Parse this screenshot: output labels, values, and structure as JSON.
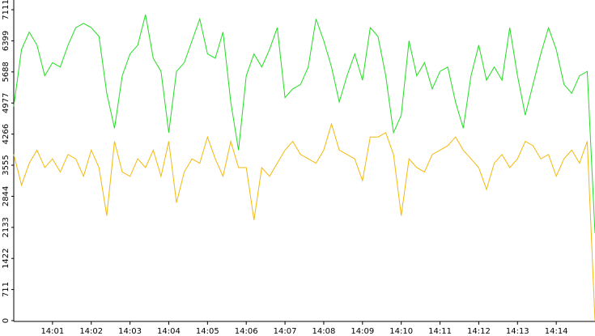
{
  "chart_data": {
    "type": "line",
    "x": [
      0,
      0.2,
      0.4,
      0.6,
      0.8,
      1,
      1.2,
      1.4,
      1.6,
      1.8,
      2,
      2.2,
      2.4,
      2.6,
      2.8,
      3,
      3.2,
      3.4,
      3.6,
      3.8,
      4,
      4.2,
      4.4,
      4.6,
      4.8,
      5,
      5.2,
      5.4,
      5.6,
      5.8,
      6,
      6.2,
      6.4,
      6.6,
      6.8,
      7,
      7.2,
      7.4,
      7.6,
      7.8,
      8,
      8.2,
      8.4,
      8.6,
      8.8,
      9,
      9.2,
      9.4,
      9.6,
      9.8,
      10,
      10.2,
      10.4,
      10.6,
      10.8,
      11,
      11.2,
      11.4,
      11.6,
      11.8,
      12,
      12.2,
      12.4,
      12.6,
      12.8,
      13,
      13.2,
      13.4,
      13.6,
      13.8,
      14,
      14.2,
      14.4,
      14.6,
      14.8,
      15
    ],
    "series": [
      {
        "color": "#22dd22",
        "values": [
          4900,
          6200,
          6600,
          6300,
          5600,
          5900,
          5800,
          6300,
          6700,
          6800,
          6700,
          6500,
          5200,
          4400,
          5600,
          6100,
          6300,
          7000,
          6000,
          5700,
          4300,
          5700,
          5900,
          6400,
          6900,
          6100,
          6000,
          6600,
          5000,
          3900,
          5600,
          6100,
          5800,
          6200,
          6700,
          5100,
          5300,
          5400,
          5800,
          6900,
          6400,
          5800,
          5000,
          5600,
          6100,
          5500,
          6700,
          6500,
          5600,
          4300,
          4700,
          6400,
          5600,
          5900,
          5300,
          5700,
          5800,
          5000,
          4400,
          5600,
          6300,
          5500,
          5800,
          5500,
          6700,
          5600,
          4700,
          5400,
          6100,
          6700,
          6200,
          5400,
          5200,
          5600,
          5700,
          2000
        ]
      },
      {
        "color": "#f2b90c",
        "values": [
          3800,
          3100,
          3600,
          3900,
          3500,
          3700,
          3400,
          3800,
          3700,
          3300,
          3900,
          3500,
          2400,
          4100,
          3400,
          3300,
          3700,
          3500,
          3900,
          3300,
          4100,
          2700,
          3400,
          3700,
          3600,
          4200,
          3700,
          3300,
          4100,
          3500,
          3500,
          2300,
          3500,
          3300,
          3600,
          3900,
          4100,
          3800,
          3700,
          3600,
          3900,
          4500,
          3900,
          3800,
          3700,
          3200,
          4200,
          4200,
          4300,
          3800,
          2400,
          3700,
          3500,
          3400,
          3800,
          3900,
          4000,
          4200,
          3900,
          3700,
          3500,
          3000,
          3600,
          3800,
          3500,
          3700,
          4100,
          4000,
          3700,
          3800,
          3300,
          3700,
          3900,
          3600,
          4100,
          0
        ]
      }
    ],
    "xlim": [
      0,
      15
    ],
    "xticks": [
      {
        "value": 1,
        "label": "14:01"
      },
      {
        "value": 2,
        "label": "14:02"
      },
      {
        "value": 3,
        "label": "14:03"
      },
      {
        "value": 4,
        "label": "14:04"
      },
      {
        "value": 5,
        "label": "14:05"
      },
      {
        "value": 6,
        "label": "14:06"
      },
      {
        "value": 7,
        "label": "14:07"
      },
      {
        "value": 8,
        "label": "14:08"
      },
      {
        "value": 9,
        "label": "14:09"
      },
      {
        "value": 10,
        "label": "14:10"
      },
      {
        "value": 11,
        "label": "14:11"
      },
      {
        "value": 12,
        "label": "14:12"
      },
      {
        "value": 13,
        "label": "14:13"
      },
      {
        "value": 14,
        "label": "14:14"
      }
    ],
    "ylim": [
      0,
      7111
    ],
    "yticks": [
      0,
      711,
      1422,
      2133,
      2844,
      3555,
      4266,
      4977,
      5688,
      6399,
      7111
    ]
  }
}
